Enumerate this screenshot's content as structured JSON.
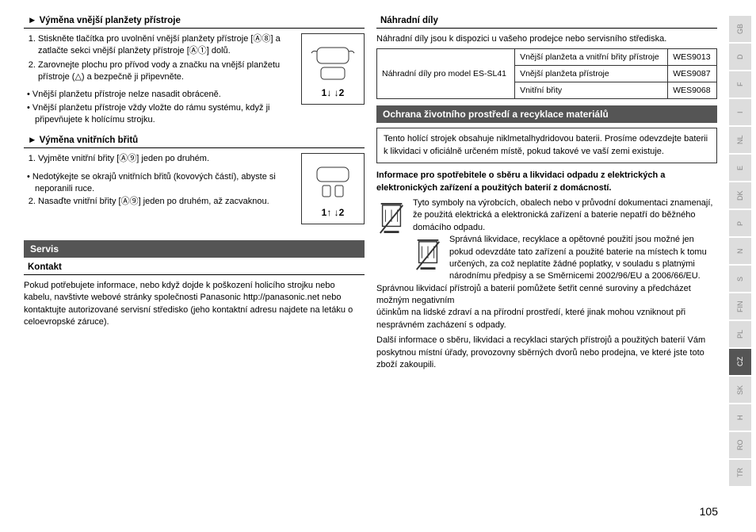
{
  "col1": {
    "s1": {
      "title": "Výměna vnější planžety přístroje",
      "li1": "Stiskněte tlačítka pro uvolnění vnější planžety přístroje [Ⓐ⑧] a zatlačte sekci vnější planžety přístroje [Ⓐ①] dolů.",
      "li2": "Zarovnejte plochu pro přívod vody a značku na vnější planžetu přístroje (△) a bezpečně ji připevněte.",
      "b1": "Vnější planžetu přístroje nelze nasadit obráceně.",
      "b2": "Vnější planžetu přístroje vždy vložte do rámu systému, když ji připevňujete k holícímu strojku.",
      "fig": "1↓ ↓2"
    },
    "s2": {
      "title": "Výměna vnitřních břitů",
      "li1": "Vyjměte vnitřní břity [Ⓐ⑨] jeden po druhém.",
      "b1": "Nedotýkejte se okrajů vnitřních břitů (kovových částí), abyste si neporanili ruce.",
      "li2": "Nasaďte vnitřní břity [Ⓐ⑨] jeden po druhém, až zacvaknou.",
      "fig": "1↑ ↓2"
    },
    "servis": "Servis",
    "kontakt": "Kontakt",
    "kontaktText": "Pokud potřebujete informace, nebo když dojde k poškození holicího strojku nebo kabelu, navštivte webové stránky společnosti Panasonic http://panasonic.net nebo kontaktujte autorizované servisní středisko (jeho kontaktní adresu najdete na letáku o celoevropské záruce)."
  },
  "col2": {
    "nd": "Náhradní díly",
    "ndText": "Náhradní díly jsou k dispozici u vašeho prodejce nebo servisního střediska.",
    "table": {
      "r1c1": "Náhradní díly pro model ES-SL41",
      "r1c2": "Vnější planžeta a vnitřní břity přístroje",
      "r1c3": "WES9013",
      "r2c2": "Vnější planžeta přístroje",
      "r2c3": "WES9087",
      "r3c2": "Vnitřní břity",
      "r3c3": "WES9068"
    },
    "ochrana": "Ochrana životního prostředí a recyklace materiálů",
    "box": "Tento holící strojek obsahuje niklmetalhydridovou baterii. Prosíme odevzdejte baterii k likvidaci v oficiálně určeném místě, pokud takové ve vaší zemi existuje.",
    "infoTitle": "Informace pro spotřebitele o sběru a likvidaci odpadu z elektrických a elektronických zařízení a použitých baterií z domácností.",
    "p1": "Tyto symboly na výrobcích, obalech nebo v průvodní dokumentaci znamenají, že použitá elektrická a elektronická zařízení a baterie nepatří do běžného domácího odpadu.",
    "p2": "Správná likvidace, recyklace a opětovné použití jsou možné jen pokud odevzdáte tato zařízení a použité baterie na místech k tomu určených, za což neplatíte žádné poplatky, v souladu s platnými národnímu předpisy a se Směrnicemi 2002/96/EU a 2006/66/EU.",
    "p3": "Správnou likvidací přístrojů a baterií pomůžete šetřit cenné suroviny a předcházet možným negativním",
    "p4": "účinkům na lidské zdraví a na přírodní prostředí, které jinak mohou vzniknout při nesprávném zacházení s odpady.",
    "p5": "Další informace o sběru, likvidaci a recyklaci starých přístrojů a použitých baterií Vám poskytnou místní úřady, provozovny sběrných dvorů nebo prodejna, ve které jste toto zboží zakoupili."
  },
  "tabs": [
    "GB",
    "D",
    "F",
    "I",
    "NL",
    "E",
    "DK",
    "P",
    "N",
    "S",
    "FIN",
    "PL",
    "CZ",
    "SK",
    "H",
    "RO",
    "TR"
  ],
  "activeTab": "CZ",
  "pageNum": "105"
}
